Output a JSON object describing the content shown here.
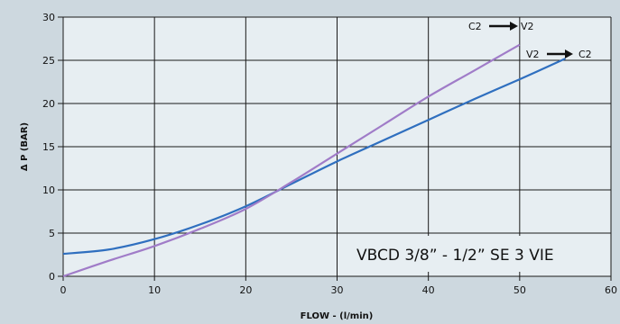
{
  "chart_data": {
    "type": "line",
    "title": "VBCD 3/8” - 1/2” SE 3 VIE",
    "xlabel": "FLOW -  (l/min)",
    "ylabel": "Δ  P (BAR)",
    "xlim": [
      0,
      60
    ],
    "ylim": [
      0,
      30
    ],
    "x_ticks": [
      0,
      10,
      20,
      30,
      40,
      50,
      60
    ],
    "y_ticks": [
      0,
      5,
      10,
      15,
      20,
      25,
      30
    ],
    "grid": true,
    "series": [
      {
        "name": "V2 → C2",
        "color": "#2f6fbf",
        "points": [
          [
            0,
            2.6
          ],
          [
            5,
            3.1
          ],
          [
            10,
            4.3
          ],
          [
            15,
            6.0
          ],
          [
            20,
            8.1
          ],
          [
            25,
            10.7
          ],
          [
            30,
            13.3
          ],
          [
            35,
            15.7
          ],
          [
            40,
            18.1
          ],
          [
            45,
            20.5
          ],
          [
            50,
            22.8
          ],
          [
            55,
            25.2
          ]
        ]
      },
      {
        "name": "C2 → V2",
        "color": "#a07cc8",
        "points": [
          [
            0,
            0.0
          ],
          [
            5,
            1.8
          ],
          [
            10,
            3.5
          ],
          [
            15,
            5.5
          ],
          [
            20,
            7.8
          ],
          [
            25,
            10.9
          ],
          [
            30,
            14.2
          ],
          [
            35,
            17.5
          ],
          [
            40,
            20.8
          ],
          [
            45,
            23.8
          ],
          [
            50,
            26.8
          ]
        ]
      }
    ],
    "annotations": [
      {
        "from": "C2",
        "to": "V2"
      },
      {
        "from": "V2",
        "to": "C2"
      }
    ]
  }
}
